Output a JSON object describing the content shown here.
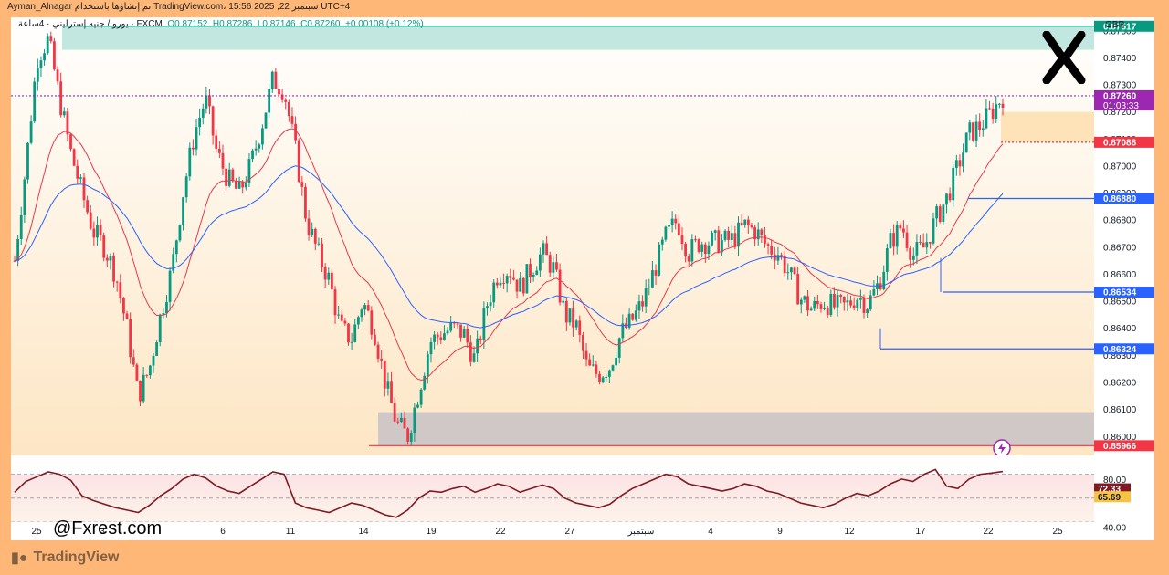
{
  "header": {
    "text": "Ayman_Alnagar تم إنشاؤها باستخدام TradingView.com، 15:56 2025 ,22 سبتمبر UTC+4"
  },
  "legend": {
    "symbol": "يورو / جنيه إسترليني · 4ساعة · FXCM",
    "open": "O0.87152",
    "high": "H0.87286",
    "low": "L0.87146",
    "close": "C0.87260",
    "change": "+0.00108 (+0.12%)"
  },
  "currency": "GBP",
  "watermark": "@Fxrest.com",
  "brand": "TradingView",
  "colors": {
    "bull": "#089981",
    "bear": "#f23645",
    "ema_fast": "#e8394a",
    "ema_slow": "#2962ff",
    "rsi": "#801922",
    "supply_zone": "#b2e1d8",
    "demand_zone": "#c7c2c7",
    "accent_purple": "#9c27b0"
  },
  "chart_data": {
    "type": "candlestick",
    "title": "",
    "ylim": [
      0.8593,
      0.8755
    ],
    "y_ticks": [
      "0.87500",
      "0.87400",
      "0.87300",
      "0.87200",
      "0.87100",
      "0.87000",
      "0.86900",
      "0.86800",
      "0.86700",
      "0.86600",
      "0.86500",
      "0.86400",
      "0.86300",
      "0.86200",
      "0.86100",
      "0.86000"
    ],
    "x_ticks": [
      "25",
      "3",
      "6",
      "11",
      "14",
      "19",
      "22",
      "27",
      "سبتمبر",
      "4",
      "9",
      "12",
      "17",
      "22",
      "25"
    ],
    "close_path": [
      0.8665,
      0.87,
      0.874,
      0.8747,
      0.8725,
      0.8705,
      0.869,
      0.8676,
      0.867,
      0.866,
      0.864,
      0.8615,
      0.8625,
      0.8645,
      0.8662,
      0.869,
      0.8712,
      0.8725,
      0.8705,
      0.8695,
      0.869,
      0.87,
      0.8715,
      0.8732,
      0.8728,
      0.8706,
      0.868,
      0.8668,
      0.8658,
      0.864,
      0.8636,
      0.865,
      0.864,
      0.862,
      0.8605,
      0.86,
      0.8617,
      0.8635,
      0.8638,
      0.864,
      0.8638,
      0.8628,
      0.8648,
      0.866,
      0.8662,
      0.8655,
      0.8662,
      0.8668,
      0.8662,
      0.8645,
      0.8641,
      0.8625,
      0.8623,
      0.8626,
      0.8638,
      0.8643,
      0.865,
      0.8662,
      0.8674,
      0.868,
      0.8668,
      0.8672,
      0.8672,
      0.8672,
      0.8673,
      0.8678,
      0.8676,
      0.867,
      0.8668,
      0.866,
      0.8651,
      0.8647,
      0.865,
      0.8648,
      0.8648,
      0.8652,
      0.8649,
      0.8657,
      0.8672,
      0.8678,
      0.8667,
      0.867,
      0.868,
      0.8688,
      0.87,
      0.8712,
      0.8715,
      0.872,
      0.8726
    ],
    "levels": [
      {
        "label": "0.87517",
        "value": 0.87517,
        "color": "#089981"
      },
      {
        "label": "0.87260",
        "value": 0.8726,
        "color": "#9c27b0",
        "sub": "01:03:33"
      },
      {
        "label": "0.87088",
        "value": 0.87088,
        "color": "#f23645"
      },
      {
        "label": "0.86880",
        "value": 0.8688,
        "color": "#2962ff"
      },
      {
        "label": "0.86534",
        "value": 0.86534,
        "color": "#2962ff"
      },
      {
        "label": "0.86324",
        "value": 0.86324,
        "color": "#2962ff"
      },
      {
        "label": "0.85966",
        "value": 0.85966,
        "color": "#f23645"
      }
    ],
    "zones": [
      {
        "name": "supply",
        "from": 0.8743,
        "to": 0.87517
      },
      {
        "name": "demand",
        "from": 0.85966,
        "to": 0.8609
      },
      {
        "name": "target",
        "from": 0.87088,
        "to": 0.872
      }
    ],
    "rsi": {
      "ylim": [
        30,
        85
      ],
      "ticks": [
        "80.00",
        "40.00"
      ],
      "upper": 70,
      "lower": 30,
      "value_label": "72.33",
      "ma_label": "65.69",
      "values": [
        55,
        64,
        68,
        72,
        70,
        65,
        52,
        48,
        45,
        42,
        40,
        38,
        44,
        52,
        58,
        66,
        70,
        67,
        60,
        56,
        54,
        60,
        66,
        72,
        70,
        46,
        42,
        40,
        38,
        42,
        46,
        44,
        40,
        36,
        34,
        40,
        50,
        56,
        55,
        58,
        60,
        55,
        58,
        62,
        60,
        55,
        58,
        61,
        58,
        50,
        46,
        44,
        42,
        45,
        52,
        58,
        62,
        66,
        70,
        68,
        62,
        60,
        58,
        56,
        58,
        62,
        60,
        56,
        54,
        50,
        46,
        44,
        42,
        45,
        50,
        54,
        52,
        56,
        62,
        66,
        64,
        70,
        74,
        60,
        58,
        66,
        70,
        71,
        72.3
      ]
    }
  }
}
